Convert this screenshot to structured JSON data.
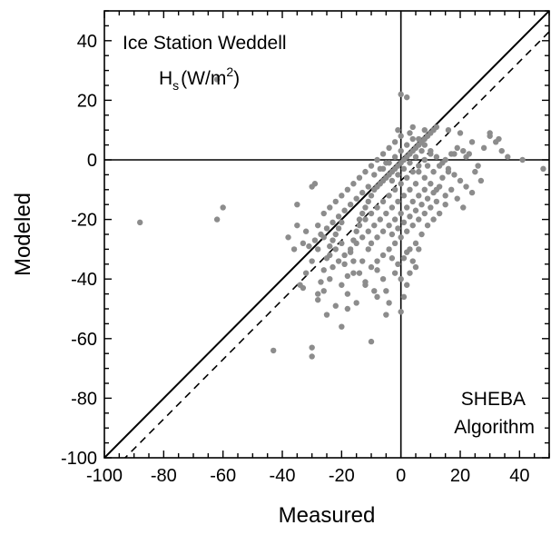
{
  "chart_data": {
    "type": "scatter",
    "xlabel": "Measured",
    "ylabel": "Modeled",
    "xlim": [
      -100,
      50
    ],
    "ylim": [
      -100,
      50
    ],
    "xticks": [
      -100,
      -80,
      -60,
      -40,
      -20,
      0,
      20,
      40
    ],
    "yticks": [
      -100,
      -80,
      -60,
      -40,
      -20,
      0,
      20,
      40
    ],
    "annotation_title": "Ice Station Weddell",
    "annotation_var": "H",
    "annotation_sub": "s",
    "annotation_units_pre": "(W/m",
    "annotation_sup": "2",
    "annotation_units_post": ")",
    "algorithm_line1": "SHEBA",
    "algorithm_line2": "Algorithm",
    "reference_lines": [
      {
        "kind": "one-to-one",
        "style": "solid",
        "slope": 1,
        "intercept": 0
      },
      {
        "kind": "offset",
        "style": "dashed",
        "slope": 1,
        "intercept": -7
      },
      {
        "kind": "zero-x",
        "style": "solid"
      },
      {
        "kind": "zero-y",
        "style": "solid"
      }
    ],
    "point_color": "#8c8c8c",
    "series": [
      {
        "points": [
          [
            -88,
            -21
          ],
          [
            -62,
            -20
          ],
          [
            -60,
            -16
          ],
          [
            -62,
            27
          ],
          [
            -43,
            -64
          ],
          [
            -30,
            -66
          ],
          [
            -30,
            -63
          ],
          [
            -35,
            -15
          ],
          [
            -33,
            -43
          ],
          [
            -32,
            -38
          ],
          [
            -30,
            -9
          ],
          [
            -29,
            -8
          ],
          [
            -28,
            -45
          ],
          [
            -27,
            -41
          ],
          [
            -26,
            -37
          ],
          [
            -25,
            -33
          ],
          [
            -24,
            -29
          ],
          [
            -23,
            -27
          ],
          [
            -22,
            -25
          ],
          [
            -21,
            -23
          ],
          [
            -20,
            -21
          ],
          [
            -19,
            -35
          ],
          [
            -18,
            -39
          ],
          [
            -17,
            -31
          ],
          [
            -16,
            -27
          ],
          [
            -15,
            -24
          ],
          [
            -14,
            -20
          ],
          [
            -13,
            -18
          ],
          [
            -12,
            -16
          ],
          [
            -11,
            -14
          ],
          [
            -10,
            -12
          ],
          [
            -9,
            -10
          ],
          [
            -8,
            -9
          ],
          [
            -7,
            -8
          ],
          [
            -6,
            -7
          ],
          [
            -5,
            -6
          ],
          [
            -4,
            -5
          ],
          [
            -3,
            -4
          ],
          [
            -2,
            -3
          ],
          [
            -1,
            -2
          ],
          [
            0,
            -1
          ],
          [
            1,
            0
          ],
          [
            2,
            1
          ],
          [
            3,
            2
          ],
          [
            4,
            3
          ],
          [
            5,
            4
          ],
          [
            6,
            5
          ],
          [
            7,
            6
          ],
          [
            8,
            7
          ],
          [
            9,
            8
          ],
          [
            10,
            9
          ],
          [
            11,
            10
          ],
          [
            -20,
            -56
          ],
          [
            -10,
            -61
          ],
          [
            0,
            -51
          ],
          [
            -25,
            -52
          ],
          [
            -15,
            -48
          ],
          [
            -5,
            -44
          ],
          [
            0,
            -40
          ],
          [
            5,
            -36
          ],
          [
            2,
            -31
          ],
          [
            -3,
            -33
          ],
          [
            -8,
            -37
          ],
          [
            -12,
            -41
          ],
          [
            -18,
            -45
          ],
          [
            -22,
            -49
          ],
          [
            -28,
            -47
          ],
          [
            -34,
            -42
          ],
          [
            -36,
            -30
          ],
          [
            -38,
            -26
          ],
          [
            -32,
            -24
          ],
          [
            -28,
            -22
          ],
          [
            -26,
            -18
          ],
          [
            -24,
            -16
          ],
          [
            -22,
            -14
          ],
          [
            -20,
            -12
          ],
          [
            -18,
            -10
          ],
          [
            -16,
            -8
          ],
          [
            -14,
            -6
          ],
          [
            -12,
            -4
          ],
          [
            -10,
            -2
          ],
          [
            -8,
            0
          ],
          [
            -6,
            2
          ],
          [
            -4,
            4
          ],
          [
            -2,
            6
          ],
          [
            0,
            8
          ],
          [
            0,
            22
          ],
          [
            2,
            21
          ],
          [
            -1,
            10
          ],
          [
            3,
            9
          ],
          [
            6,
            7
          ],
          [
            8,
            5
          ],
          [
            10,
            3
          ],
          [
            12,
            1
          ],
          [
            14,
            -1
          ],
          [
            16,
            -3
          ],
          [
            18,
            -5
          ],
          [
            20,
            -7
          ],
          [
            22,
            -9
          ],
          [
            24,
            -11
          ],
          [
            26,
            -2
          ],
          [
            28,
            4
          ],
          [
            30,
            8
          ],
          [
            32,
            6
          ],
          [
            34,
            3
          ],
          [
            36,
            1
          ],
          [
            24,
            6
          ],
          [
            20,
            9
          ],
          [
            16,
            10
          ],
          [
            12,
            11
          ],
          [
            8,
            10
          ],
          [
            4,
            11
          ],
          [
            18,
            2
          ],
          [
            22,
            1
          ],
          [
            25,
            -4
          ],
          [
            27,
            -7
          ],
          [
            15,
            -12
          ],
          [
            12,
            -14
          ],
          [
            10,
            -16
          ],
          [
            8,
            -18
          ],
          [
            6,
            -20
          ],
          [
            4,
            -22
          ],
          [
            2,
            -24
          ],
          [
            0,
            -26
          ],
          [
            -2,
            -28
          ],
          [
            -4,
            -30
          ],
          [
            -6,
            -32
          ],
          [
            -8,
            -34
          ],
          [
            -10,
            -36
          ],
          [
            9,
            -22
          ],
          [
            7,
            -25
          ],
          [
            5,
            -28
          ],
          [
            3,
            -30
          ],
          [
            1,
            -33
          ],
          [
            -1,
            -35
          ],
          [
            13,
            -18
          ],
          [
            15,
            -15
          ],
          [
            17,
            -10
          ],
          [
            19,
            -13
          ],
          [
            21,
            -16
          ],
          [
            11,
            -20
          ],
          [
            5,
            -8
          ],
          [
            3,
            -10
          ],
          [
            1,
            -12
          ],
          [
            -1,
            -14
          ],
          [
            -3,
            -16
          ],
          [
            -5,
            -18
          ],
          [
            -7,
            -20
          ],
          [
            -9,
            -22
          ],
          [
            -11,
            -24
          ],
          [
            -13,
            -26
          ],
          [
            -15,
            -28
          ],
          [
            -17,
            -30
          ],
          [
            -19,
            -32
          ],
          [
            -21,
            -34
          ],
          [
            -23,
            -36
          ],
          [
            -6,
            -3
          ],
          [
            -4,
            -1
          ],
          [
            -2,
            1
          ],
          [
            0,
            3
          ],
          [
            2,
            5
          ],
          [
            4,
            7
          ],
          [
            6,
            -4
          ],
          [
            8,
            -6
          ],
          [
            10,
            -8
          ],
          [
            12,
            -10
          ],
          [
            14,
            -6
          ],
          [
            16,
            -4
          ],
          [
            -10,
            -28
          ],
          [
            -8,
            -26
          ],
          [
            -6,
            -24
          ],
          [
            -4,
            -22
          ],
          [
            -2,
            -20
          ],
          [
            0,
            -18
          ],
          [
            2,
            -16
          ],
          [
            4,
            -14
          ],
          [
            6,
            -12
          ],
          [
            8,
            -10
          ],
          [
            -14,
            -22
          ],
          [
            -12,
            -20
          ],
          [
            -10,
            -18
          ],
          [
            -8,
            -16
          ],
          [
            -6,
            -14
          ],
          [
            -4,
            -12
          ],
          [
            -2,
            -10
          ],
          [
            0,
            -8
          ],
          [
            2,
            -6
          ],
          [
            4,
            -4
          ],
          [
            6,
            -2
          ],
          [
            8,
            0
          ],
          [
            10,
            2
          ],
          [
            -3,
            -7
          ],
          [
            -1,
            -5
          ],
          [
            1,
            -3
          ],
          [
            3,
            -1
          ],
          [
            5,
            1
          ],
          [
            7,
            3
          ],
          [
            9,
            -2
          ],
          [
            11,
            -4
          ],
          [
            13,
            -2
          ],
          [
            15,
            0
          ],
          [
            17,
            2
          ],
          [
            19,
            4
          ],
          [
            21,
            3
          ],
          [
            23,
            2
          ],
          [
            -16,
            -34
          ],
          [
            -14,
            -38
          ],
          [
            -12,
            -42
          ],
          [
            -8,
            -46
          ],
          [
            -4,
            -48
          ],
          [
            -24,
            -40
          ],
          [
            -26,
            -44
          ],
          [
            -20,
            -42
          ],
          [
            -18,
            -50
          ],
          [
            41,
            0
          ],
          [
            48,
            -3
          ],
          [
            30,
            9
          ],
          [
            33,
            7
          ],
          [
            -9,
            -5
          ],
          [
            -7,
            -3
          ],
          [
            -5,
            -1
          ],
          [
            -11,
            -9
          ],
          [
            -13,
            -11
          ],
          [
            -15,
            -13
          ],
          [
            -17,
            -15
          ],
          [
            -19,
            -17
          ],
          [
            -21,
            -19
          ],
          [
            -23,
            -21
          ],
          [
            -25,
            -23
          ],
          [
            -27,
            -25
          ],
          [
            -29,
            -27
          ],
          [
            -31,
            -29
          ],
          [
            -3,
            -25
          ],
          [
            -1,
            -23
          ],
          [
            1,
            -21
          ],
          [
            3,
            -19
          ],
          [
            5,
            -17
          ],
          [
            7,
            -15
          ],
          [
            9,
            -13
          ],
          [
            11,
            -11
          ],
          [
            13,
            -9
          ],
          [
            -2,
            -38
          ],
          [
            2,
            -42
          ],
          [
            -6,
            -40
          ],
          [
            4,
            -34
          ],
          [
            6,
            -30
          ],
          [
            -11,
            -30
          ],
          [
            -9,
            -44
          ],
          [
            -5,
            -52
          ],
          [
            1,
            -46
          ],
          [
            3,
            -38
          ],
          [
            -13,
            -34
          ],
          [
            -16,
            -38
          ],
          [
            -20,
            -28
          ],
          [
            -22,
            -30
          ],
          [
            -24,
            -32
          ],
          [
            -26,
            -26
          ],
          [
            -28,
            -30
          ],
          [
            -30,
            -34
          ],
          [
            -33,
            -28
          ],
          [
            -35,
            -22
          ]
        ]
      }
    ]
  }
}
